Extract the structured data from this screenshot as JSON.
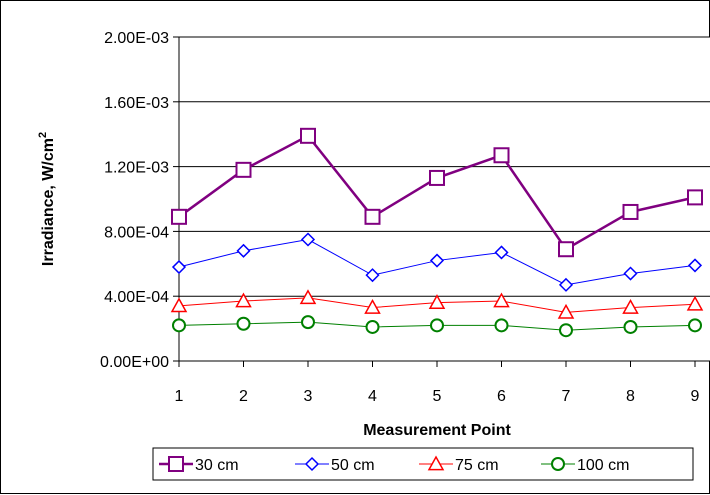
{
  "chart_data": {
    "type": "line",
    "x": [
      1,
      2,
      3,
      4,
      5,
      6,
      7,
      8,
      9
    ],
    "xlabel": "Measurement Point",
    "ylabel_main": "Irradiance, W/cm",
    "ylabel_sup": "2",
    "ylim": [
      0,
      0.002
    ],
    "yticks": [
      {
        "value": 0,
        "label": "0.00E+00"
      },
      {
        "value": 0.0004,
        "label": "4.00E-04"
      },
      {
        "value": 0.0008,
        "label": "8.00E-04"
      },
      {
        "value": 0.0012,
        "label": "1.20E-03"
      },
      {
        "value": 0.0016,
        "label": "1.60E-03"
      },
      {
        "value": 0.002,
        "label": "2.00E-03"
      }
    ],
    "grid": true,
    "legend_position": "bottom",
    "series": [
      {
        "name": "30 cm",
        "color": "#800080",
        "marker": "square",
        "values": [
          0.00089,
          0.00118,
          0.00139,
          0.00089,
          0.00113,
          0.00127,
          0.00069,
          0.00092,
          0.00101
        ]
      },
      {
        "name": "50 cm",
        "color": "#0000FF",
        "marker": "diamond",
        "values": [
          0.00058,
          0.00068,
          0.00075,
          0.00053,
          0.00062,
          0.00067,
          0.00047,
          0.00054,
          0.00059
        ]
      },
      {
        "name": "75 cm",
        "color": "#FF0000",
        "marker": "triangle",
        "values": [
          0.00034,
          0.00037,
          0.00039,
          0.00033,
          0.00036,
          0.00037,
          0.0003,
          0.00033,
          0.00035
        ]
      },
      {
        "name": "100 cm",
        "color": "#008000",
        "marker": "circle",
        "values": [
          0.00022,
          0.00023,
          0.00024,
          0.00021,
          0.00022,
          0.00022,
          0.00019,
          0.00021,
          0.00022
        ]
      }
    ]
  }
}
